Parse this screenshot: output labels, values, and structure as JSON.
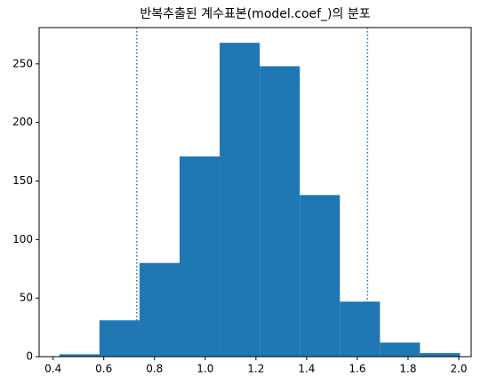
{
  "chart_data": {
    "type": "histogram",
    "title": "반복추출된 계수표본(model.coef_)의 분포",
    "bins": [
      0.425,
      0.583,
      0.741,
      0.899,
      1.057,
      1.215,
      1.373,
      1.531,
      1.689,
      1.847,
      2.005
    ],
    "values": [
      2,
      31,
      80,
      171,
      268,
      248,
      138,
      47,
      12,
      3
    ],
    "color": "#1f77b4",
    "vlines": [
      0.73,
      1.64
    ],
    "vline_color": "#1f77b4",
    "vline_style": "dotted",
    "xlim": [
      0.345,
      2.049
    ],
    "xticks": [
      0.4,
      0.6,
      0.8,
      {
        "value": 1.0,
        "label": "1.0"
      },
      1.2,
      1.4,
      1.6,
      1.8,
      {
        "value": 2.0,
        "label": "2.0"
      }
    ],
    "ylim": [
      0,
      281
    ],
    "yticks": [
      0,
      50,
      100,
      150,
      200,
      250
    ],
    "grid": false
  }
}
